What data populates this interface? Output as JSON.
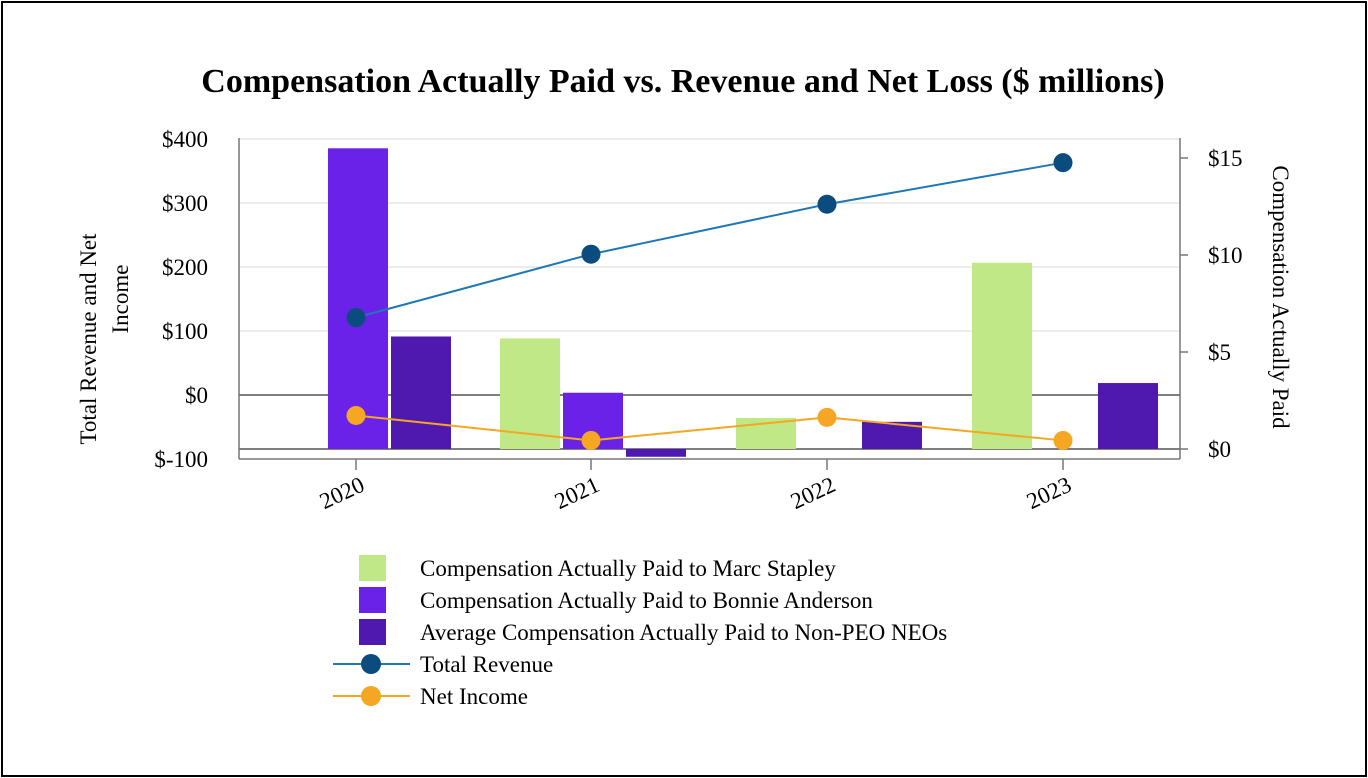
{
  "chart_data": {
    "type": "bar",
    "title": "Compensation Actually Paid vs. Revenue and Net Loss ($ millions)",
    "categories": [
      "2020",
      "2021",
      "2022",
      "2023"
    ],
    "left_axis": {
      "label": "Total Revenue and Net Income",
      "ylim": [
        -100,
        400
      ],
      "ticks": [
        400,
        300,
        200,
        100,
        0,
        -100
      ],
      "tick_labels": [
        "$400",
        "$300",
        "$200",
        "$100",
        "$0",
        "$-100"
      ]
    },
    "right_axis": {
      "label": "Compensation Actually Paid",
      "ylim": [
        0,
        15.5
      ],
      "ticks": [
        15,
        10,
        5,
        0
      ],
      "tick_labels": [
        "$15",
        "$10",
        "$5",
        "$0"
      ]
    },
    "bar_series": [
      {
        "name": "Compensation Actually Paid to Marc Stapley",
        "axis": "right",
        "color": "#C0E886",
        "values": [
          null,
          5.7,
          1.6,
          9.6
        ]
      },
      {
        "name": "Compensation Actually Paid to Bonnie Anderson",
        "axis": "right",
        "color": "#6A22E8",
        "values": [
          15.5,
          2.9,
          null,
          null
        ]
      },
      {
        "name": "Average Compensation Actually Paid to Non-PEO NEOs",
        "axis": "right",
        "color": "#4F19B0",
        "values": [
          5.8,
          -0.4,
          1.4,
          3.4
        ]
      }
    ],
    "line_series": [
      {
        "name": "Total Revenue",
        "axis": "left",
        "color": "#1F78B4",
        "marker_color": "#0B4C7E",
        "values": [
          121,
          220,
          298,
          363
        ]
      },
      {
        "name": "Net Income",
        "axis": "left",
        "color": "#F5A623",
        "marker_color": "#F5A623",
        "values": [
          -32,
          -71,
          -35,
          -71
        ]
      }
    ],
    "legend_position": "bottom"
  }
}
